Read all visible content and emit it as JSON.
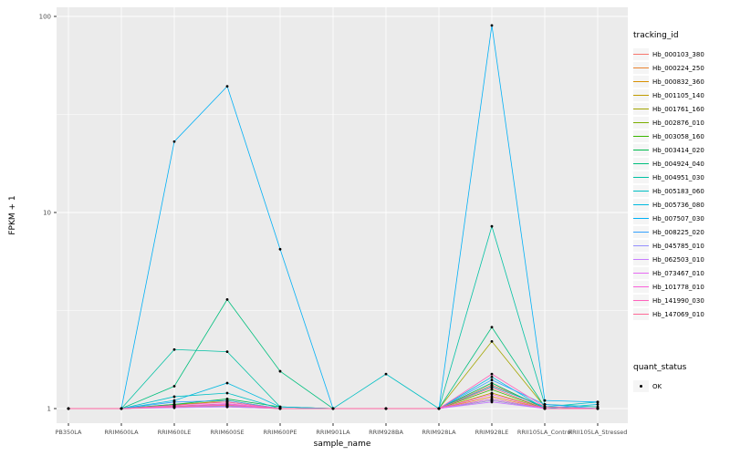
{
  "figure": {
    "background": "#FFFFFF",
    "panel_background": "#EBEBEB",
    "grid_major_color": "#FFFFFF",
    "grid_minor_color": "#FFFFFF",
    "tick_label_color": "#4D4D4D",
    "point_color": "#000000"
  },
  "chart_data": {
    "type": "line",
    "title": "",
    "xlabel": "sample_name",
    "ylabel": "FPKM + 1",
    "y_scale": "log10",
    "y_ticks": [
      1,
      10,
      100
    ],
    "y_minor_ticks": [
      3.1623,
      31.623
    ],
    "ylim": [
      0.85,
      111
    ],
    "grid": true,
    "legend_position": "right",
    "categories": [
      "PB350LA",
      "RRIM600LA",
      "RRIM600LE",
      "RRIM600SE",
      "RRIM600PE",
      "RRIM901LA",
      "RRIM928BA",
      "RRIM928LA",
      "RRIM928LE",
      "RRII105LA_Control",
      "RRII105LA_Stressed"
    ],
    "series": [
      {
        "name": "Hb_000103_380",
        "color": "#F8766D",
        "values": [
          1,
          1,
          1.02,
          1.05,
          1,
          1,
          1,
          1,
          1.32,
          1.02,
          1
        ]
      },
      {
        "name": "Hb_000224_250",
        "color": "#EA8331",
        "values": [
          1,
          1,
          1.03,
          1.02,
          1,
          1,
          1,
          1,
          1.15,
          1,
          1
        ]
      },
      {
        "name": "Hb_000832_360",
        "color": "#D89000",
        "values": [
          1,
          1,
          1.02,
          1.04,
          1,
          1,
          1,
          1,
          1.1,
          1,
          1
        ]
      },
      {
        "name": "Hb_001105_140",
        "color": "#C09B00",
        "values": [
          1,
          1,
          1.05,
          1.08,
          1,
          1,
          1,
          1,
          1.2,
          1,
          1
        ]
      },
      {
        "name": "Hb_001761_160",
        "color": "#A3A500",
        "values": [
          1,
          1,
          1.04,
          1.1,
          1,
          1,
          1,
          1,
          2.2,
          1.02,
          1
        ]
      },
      {
        "name": "Hb_002876_010",
        "color": "#7CAE00",
        "values": [
          1,
          1,
          1.02,
          1.03,
          1,
          1,
          1,
          1,
          1.12,
          1,
          1
        ]
      },
      {
        "name": "Hb_003058_160",
        "color": "#39B600",
        "values": [
          1,
          1,
          1.03,
          1.05,
          1,
          1,
          1,
          1,
          1.25,
          1,
          1
        ]
      },
      {
        "name": "Hb_003414_020",
        "color": "#00BB4E",
        "values": [
          1,
          1,
          1.05,
          1.12,
          1.02,
          1,
          1,
          1,
          1.35,
          1,
          1
        ]
      },
      {
        "name": "Hb_004924_040",
        "color": "#00BF7D",
        "values": [
          1,
          1,
          1.3,
          3.6,
          1.55,
          1,
          1,
          1,
          2.6,
          1.02,
          1
        ]
      },
      {
        "name": "Hb_004951_030",
        "color": "#00C1A3",
        "values": [
          1,
          1,
          2,
          1.95,
          1.02,
          1,
          1,
          1,
          8.5,
          1.05,
          1.02
        ]
      },
      {
        "name": "Hb_005183_060",
        "color": "#00BFC4",
        "values": [
          1,
          1,
          1.15,
          1.2,
          1,
          1,
          1.5,
          1,
          1.3,
          1.02,
          1.08
        ]
      },
      {
        "name": "Hb_005736_080",
        "color": "#00BAE0",
        "values": [
          1,
          1,
          1.1,
          1.35,
          1.02,
          1,
          1,
          1,
          1.45,
          1,
          1.05
        ]
      },
      {
        "name": "Hb_007507_030",
        "color": "#00B0F6",
        "values": [
          1,
          1,
          23,
          44,
          6.5,
          1,
          1,
          1,
          90,
          1.1,
          1.08
        ]
      },
      {
        "name": "Hb_008225_020",
        "color": "#35A2FF",
        "values": [
          1,
          1,
          1.08,
          1.1,
          1,
          1,
          1,
          1,
          1.4,
          1.05,
          1
        ]
      },
      {
        "name": "Hb_045785_010",
        "color": "#9590FF",
        "values": [
          1,
          1,
          1.02,
          1.03,
          1,
          1,
          1,
          1,
          1.1,
          1,
          1
        ]
      },
      {
        "name": "Hb_062503_010",
        "color": "#C77CFF",
        "values": [
          1,
          1,
          1.01,
          1.02,
          1,
          1,
          1,
          1,
          1.08,
          1,
          1
        ]
      },
      {
        "name": "Hb_073467_010",
        "color": "#E76BF3",
        "values": [
          1,
          1,
          1.02,
          1.05,
          1,
          1,
          1,
          1,
          1.12,
          1,
          1
        ]
      },
      {
        "name": "Hb_101778_010",
        "color": "#FA62DB",
        "values": [
          1,
          1,
          1.03,
          1.06,
          1,
          1,
          1,
          1,
          1.18,
          1,
          1
        ]
      },
      {
        "name": "Hb_141990_030",
        "color": "#FF62BC",
        "values": [
          1,
          1,
          1.04,
          1.08,
          1,
          1,
          1,
          1,
          1.5,
          1.02,
          1
        ]
      },
      {
        "name": "Hb_147069_010",
        "color": "#FF6A98",
        "values": [
          1,
          1,
          1.02,
          1.04,
          1,
          1,
          1,
          1,
          1.28,
          1,
          1
        ]
      }
    ],
    "legend": {
      "color_title": "tracking_id",
      "shape_title": "quant_status",
      "shape_entries": [
        {
          "label": "OK"
        }
      ]
    }
  }
}
